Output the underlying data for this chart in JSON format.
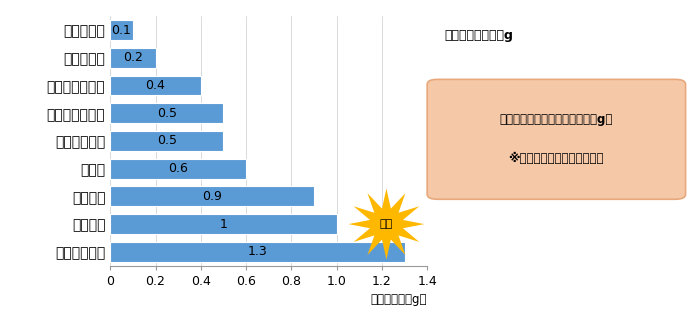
{
  "categories": [
    "マヨネーズ",
    "ケチャップ",
    "ポン酢しょうゆ",
    "ウスターソース",
    "減塩濃口醤油",
    "麦みそ",
    "濃口醤油",
    "淡口醤油",
    "和風顆粒だし"
  ],
  "values": [
    0.1,
    0.2,
    0.4,
    0.5,
    0.5,
    0.6,
    0.9,
    1.0,
    1.3
  ],
  "bar_color": "#5B9BD5",
  "xlabel": "食塩相当量（g）",
  "xlim": [
    0,
    1.4
  ],
  "xticks": [
    0,
    0.2,
    0.4,
    0.6,
    0.8,
    1.0,
    1.2,
    1.4
  ],
  "annotation_box_line1": "小さじ１の場合の食塩相当量（g）",
  "annotation_box_line2": "※商品によって差があります",
  "annotation_box_color": "#F5C9A8",
  "annotation_box_edge": "#E8A87C",
  "top_right_text": "食塩小さじ１＝６g",
  "starburst_text": "多い",
  "starburst_color": "#FFB800",
  "figsize": [
    6.89,
    3.24
  ],
  "dpi": 100,
  "bg_color": "#FFFFFF",
  "label_values": [
    "0.1",
    "0.2",
    "0.4",
    "0.5",
    "0.5",
    "0.6",
    "0.9",
    "1",
    "1.3"
  ]
}
